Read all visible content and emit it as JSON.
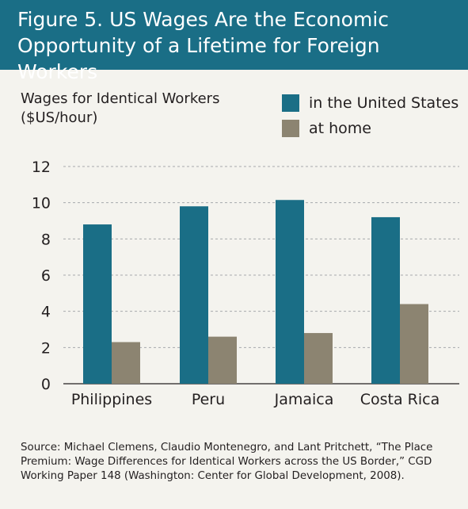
{
  "header": {
    "title_line1": "Figure 5. US Wages Are the Economic",
    "title_line2": "Opportunity of a Lifetime for Foreign Workers"
  },
  "chart_data": {
    "type": "bar",
    "ylabel": "Wages for Identical Workers\n($US/hour)",
    "categories": [
      "Philippines",
      "Peru",
      "Jamaica",
      "Costa Rica"
    ],
    "series": [
      {
        "name": "in the United States",
        "values": [
          8.8,
          9.8,
          10.15,
          9.2
        ],
        "color": "#1a6e86"
      },
      {
        "name": "at home",
        "values": [
          2.3,
          2.6,
          2.8,
          4.4
        ],
        "color": "#8c8471"
      }
    ],
    "yticks": [
      "0",
      "2",
      "4",
      "6",
      "8",
      "10",
      "12"
    ],
    "ylim": [
      0,
      12
    ],
    "grid": true,
    "legend_position": "top-right"
  },
  "footer": {
    "source": "Source: Michael Clemens, Claudio Montenegro, and Lant Pritchett, “The Place Premium: Wage Differences for Identical Workers across the US Border,” CGD Working Paper 148 (Washington: Center for Global Development, 2008)."
  }
}
